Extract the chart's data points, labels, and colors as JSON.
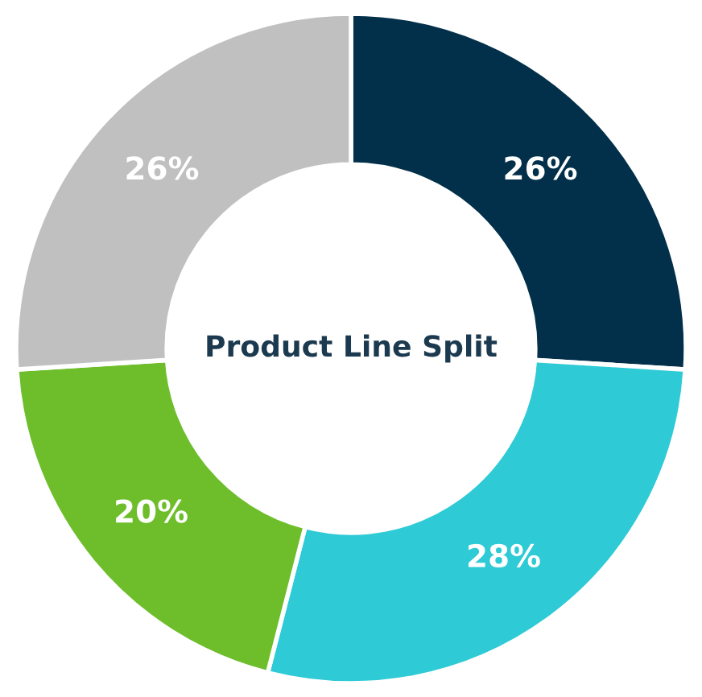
{
  "chart_data": {
    "type": "donut",
    "title": "Product Line Split",
    "categories": [
      null,
      null,
      null,
      null
    ],
    "values": [
      26,
      28,
      20,
      26
    ],
    "colors": [
      "#02304a",
      "#2ecad6",
      "#6ebe2c",
      "#c0c0c0"
    ],
    "value_labels": [
      "26%",
      "28%",
      "20%",
      "26%"
    ]
  }
}
